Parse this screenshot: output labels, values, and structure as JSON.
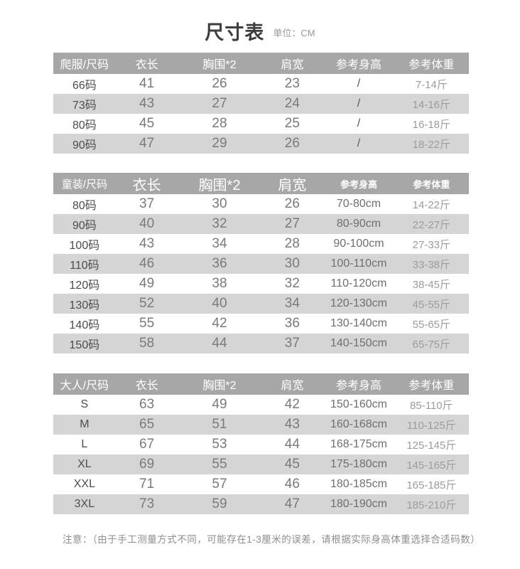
{
  "page": {
    "title": "尺寸表",
    "unit_label": "单位：CM",
    "note": "注意：（由于手工测量方式不同，可能存在1-3厘米的误差，请根据实际身高体重选择合适码数）"
  },
  "colors": {
    "header_bg": "#a7a7a7",
    "alt_row_bg": "#d5d5d5",
    "header_text": "#ffffff",
    "title_text": "#3d3d3d",
    "note_text": "#8e8e8e"
  },
  "tables": [
    {
      "name": "romper-size-table",
      "columns": [
        "爬服/尺码",
        "衣长",
        "胸围*2",
        "肩宽",
        "参考身高",
        "参考体重"
      ],
      "rows": [
        [
          "66码",
          "41",
          "26",
          "23",
          "/",
          "7-14斤"
        ],
        [
          "73码",
          "43",
          "27",
          "24",
          "/",
          "14-16斤"
        ],
        [
          "80码",
          "45",
          "28",
          "25",
          "/",
          "16-18斤"
        ],
        [
          "90码",
          "47",
          "29",
          "26",
          "/",
          "18-22斤"
        ]
      ]
    },
    {
      "name": "kids-size-table",
      "columns": [
        "童装/尺码",
        "衣长",
        "胸围*2",
        "肩宽",
        "参考身高",
        "参考体重"
      ],
      "rows": [
        [
          "80码",
          "37",
          "30",
          "26",
          "70-80cm",
          "14-22斤"
        ],
        [
          "90码",
          "40",
          "32",
          "27",
          "80-90cm",
          "22-27斤"
        ],
        [
          "100码",
          "43",
          "34",
          "28",
          "90-100cm",
          "27-33斤"
        ],
        [
          "110码",
          "46",
          "36",
          "30",
          "100-110cm",
          "33-38斤"
        ],
        [
          "120码",
          "49",
          "38",
          "32",
          "110-120cm",
          "38-45斤"
        ],
        [
          "130码",
          "52",
          "40",
          "34",
          "120-130cm",
          "45-55斤"
        ],
        [
          "140码",
          "55",
          "42",
          "36",
          "130-140cm",
          "55-65斤"
        ],
        [
          "150码",
          "58",
          "44",
          "37",
          "140-150cm",
          "65-75斤"
        ]
      ]
    },
    {
      "name": "adult-size-table",
      "columns": [
        "大人/尺码",
        "衣长",
        "胸围*2",
        "肩宽",
        "参考身高",
        "参考体重"
      ],
      "rows": [
        [
          "S",
          "63",
          "49",
          "42",
          "150-160cm",
          "85-110斤"
        ],
        [
          "M",
          "65",
          "51",
          "43",
          "160-168cm",
          "110-125斤"
        ],
        [
          "L",
          "67",
          "53",
          "44",
          "168-175cm",
          "125-145斤"
        ],
        [
          "XL",
          "69",
          "55",
          "45",
          "175-180cm",
          "145-165斤"
        ],
        [
          "XXL",
          "71",
          "57",
          "46",
          "180-185cm",
          "165-185斤"
        ],
        [
          "3XL",
          "73",
          "59",
          "47",
          "180-190cm",
          "185-210斤"
        ]
      ]
    }
  ]
}
